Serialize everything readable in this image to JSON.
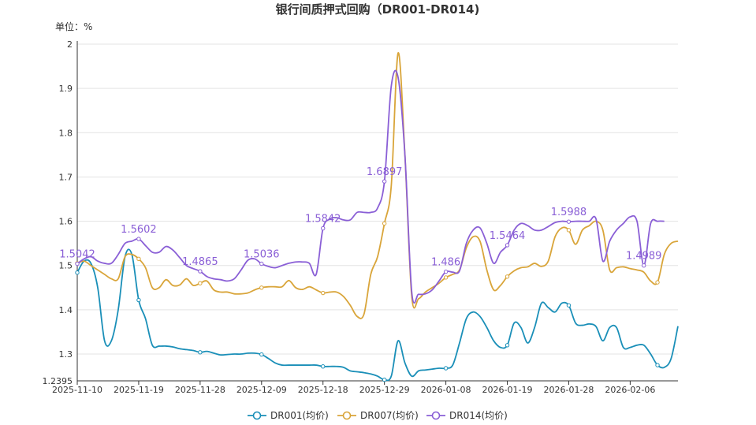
{
  "chart_data": {
    "type": "line",
    "title": "银行间质押式回购（DR001-DR014)",
    "unit_label": "单位：%",
    "ylim": [
      1.2395,
      2.0
    ],
    "yticks": [
      2,
      1.9,
      1.8,
      1.7,
      1.6,
      1.5,
      1.4,
      1.3
    ],
    "ymin_label": "1.2395",
    "x_count": 89,
    "x_ticks": [
      {
        "i": 0,
        "label": "2025-11-10"
      },
      {
        "i": 9,
        "label": "2025-11-19"
      },
      {
        "i": 18,
        "label": "2025-11-28"
      },
      {
        "i": 27,
        "label": "2025-12-09"
      },
      {
        "i": 36,
        "label": "2025-12-18"
      },
      {
        "i": 45,
        "label": "2025-12-29"
      },
      {
        "i": 54,
        "label": "2026-01-08"
      },
      {
        "i": 63,
        "label": "2026-01-19"
      },
      {
        "i": 72,
        "label": "2026-01-28"
      },
      {
        "i": 81,
        "label": "2026-02-06"
      }
    ],
    "series": [
      {
        "name": "DR001(均价)",
        "color": "#1a8fb8",
        "points": [
          [
            0,
            1.484
          ],
          [
            1,
            1.51
          ],
          [
            2,
            1.505
          ],
          [
            3,
            1.45
          ],
          [
            4,
            1.33
          ],
          [
            5,
            1.33
          ],
          [
            6,
            1.4
          ],
          [
            7,
            1.52
          ],
          [
            8,
            1.525
          ],
          [
            9,
            1.422
          ],
          [
            10,
            1.38
          ],
          [
            11,
            1.32
          ],
          [
            12,
            1.318
          ],
          [
            13,
            1.318
          ],
          [
            14,
            1.316
          ],
          [
            15,
            1.312
          ],
          [
            16,
            1.31
          ],
          [
            17,
            1.308
          ],
          [
            18,
            1.304
          ],
          [
            19,
            1.306
          ],
          [
            20,
            1.302
          ],
          [
            21,
            1.298
          ],
          [
            22,
            1.299
          ],
          [
            23,
            1.3
          ],
          [
            24,
            1.3
          ],
          [
            25,
            1.302
          ],
          [
            26,
            1.302
          ],
          [
            27,
            1.299
          ],
          [
            28,
            1.29
          ],
          [
            29,
            1.28
          ],
          [
            30,
            1.275
          ],
          [
            31,
            1.275
          ],
          [
            32,
            1.275
          ],
          [
            33,
            1.275
          ],
          [
            34,
            1.275
          ],
          [
            35,
            1.275
          ],
          [
            36,
            1.272
          ],
          [
            37,
            1.272
          ],
          [
            38,
            1.272
          ],
          [
            39,
            1.27
          ],
          [
            40,
            1.262
          ],
          [
            41,
            1.26
          ],
          [
            42,
            1.258
          ],
          [
            43,
            1.255
          ],
          [
            44,
            1.25
          ],
          [
            45,
            1.242
          ],
          [
            46,
            1.25
          ],
          [
            47,
            1.33
          ],
          [
            48,
            1.28
          ],
          [
            49,
            1.25
          ],
          [
            50,
            1.262
          ],
          [
            51,
            1.264
          ],
          [
            52,
            1.266
          ],
          [
            53,
            1.268
          ],
          [
            54,
            1.268
          ],
          [
            55,
            1.275
          ],
          [
            56,
            1.325
          ],
          [
            57,
            1.38
          ],
          [
            58,
            1.395
          ],
          [
            59,
            1.385
          ],
          [
            60,
            1.36
          ],
          [
            61,
            1.33
          ],
          [
            62,
            1.315
          ],
          [
            63,
            1.32
          ],
          [
            64,
            1.37
          ],
          [
            65,
            1.36
          ],
          [
            66,
            1.325
          ],
          [
            67,
            1.36
          ],
          [
            68,
            1.415
          ],
          [
            69,
            1.405
          ],
          [
            70,
            1.395
          ],
          [
            71,
            1.415
          ],
          [
            72,
            1.41
          ],
          [
            73,
            1.37
          ],
          [
            74,
            1.365
          ],
          [
            75,
            1.368
          ],
          [
            76,
            1.362
          ],
          [
            77,
            1.33
          ],
          [
            78,
            1.36
          ],
          [
            79,
            1.36
          ],
          [
            80,
            1.315
          ],
          [
            81,
            1.315
          ],
          [
            82,
            1.32
          ],
          [
            83,
            1.32
          ],
          [
            84,
            1.3
          ],
          [
            85,
            1.275
          ],
          [
            86,
            1.27
          ],
          [
            87,
            1.29
          ],
          [
            88,
            1.363
          ]
        ],
        "markers": [
          0,
          9,
          18,
          27,
          36,
          45,
          54,
          63,
          72,
          85
        ]
      },
      {
        "name": "DR007(均价)",
        "color": "#d9a53a",
        "points": [
          [
            0,
            1.505
          ],
          [
            1,
            1.51
          ],
          [
            2,
            1.5
          ],
          [
            3,
            1.49
          ],
          [
            4,
            1.48
          ],
          [
            5,
            1.47
          ],
          [
            6,
            1.47
          ],
          [
            7,
            1.52
          ],
          [
            8,
            1.525
          ],
          [
            9,
            1.515
          ],
          [
            10,
            1.495
          ],
          [
            11,
            1.45
          ],
          [
            12,
            1.45
          ],
          [
            13,
            1.468
          ],
          [
            14,
            1.455
          ],
          [
            15,
            1.456
          ],
          [
            16,
            1.47
          ],
          [
            17,
            1.455
          ],
          [
            18,
            1.46
          ],
          [
            19,
            1.465
          ],
          [
            20,
            1.445
          ],
          [
            21,
            1.44
          ],
          [
            22,
            1.44
          ],
          [
            23,
            1.436
          ],
          [
            24,
            1.436
          ],
          [
            25,
            1.438
          ],
          [
            26,
            1.445
          ],
          [
            27,
            1.45
          ],
          [
            28,
            1.452
          ],
          [
            29,
            1.452
          ],
          [
            30,
            1.452
          ],
          [
            31,
            1.466
          ],
          [
            32,
            1.45
          ],
          [
            33,
            1.446
          ],
          [
            34,
            1.452
          ],
          [
            35,
            1.445
          ],
          [
            36,
            1.438
          ],
          [
            37,
            1.44
          ],
          [
            38,
            1.44
          ],
          [
            39,
            1.43
          ],
          [
            40,
            1.41
          ],
          [
            41,
            1.385
          ],
          [
            42,
            1.39
          ],
          [
            43,
            1.48
          ],
          [
            44,
            1.52
          ],
          [
            45,
            1.595
          ],
          [
            46,
            1.68
          ],
          [
            47,
            1.98
          ],
          [
            48,
            1.75
          ],
          [
            49,
            1.43
          ],
          [
            50,
            1.425
          ],
          [
            51,
            1.44
          ],
          [
            52,
            1.45
          ],
          [
            53,
            1.46
          ],
          [
            54,
            1.473
          ],
          [
            55,
            1.48
          ],
          [
            56,
            1.49
          ],
          [
            57,
            1.54
          ],
          [
            58,
            1.565
          ],
          [
            59,
            1.555
          ],
          [
            60,
            1.49
          ],
          [
            61,
            1.445
          ],
          [
            62,
            1.455
          ],
          [
            63,
            1.475
          ],
          [
            64,
            1.488
          ],
          [
            65,
            1.495
          ],
          [
            66,
            1.497
          ],
          [
            67,
            1.505
          ],
          [
            68,
            1.498
          ],
          [
            69,
            1.51
          ],
          [
            70,
            1.565
          ],
          [
            71,
            1.585
          ],
          [
            72,
            1.58
          ],
          [
            73,
            1.548
          ],
          [
            74,
            1.58
          ],
          [
            75,
            1.59
          ],
          [
            76,
            1.6
          ],
          [
            77,
            1.58
          ],
          [
            78,
            1.49
          ],
          [
            79,
            1.495
          ],
          [
            80,
            1.497
          ],
          [
            81,
            1.493
          ],
          [
            82,
            1.49
          ],
          [
            83,
            1.485
          ],
          [
            84,
            1.465
          ],
          [
            85,
            1.462
          ],
          [
            86,
            1.525
          ],
          [
            87,
            1.55
          ],
          [
            88,
            1.555
          ]
        ],
        "markers": [
          0,
          9,
          18,
          27,
          36,
          45,
          54,
          63,
          72,
          85
        ]
      },
      {
        "name": "DR014(均价)",
        "color": "#8a5fd6",
        "points": [
          [
            0,
            1.504
          ],
          [
            1,
            1.515
          ],
          [
            2,
            1.52
          ],
          [
            3,
            1.51
          ],
          [
            4,
            1.505
          ],
          [
            5,
            1.505
          ],
          [
            6,
            1.525
          ],
          [
            7,
            1.55
          ],
          [
            8,
            1.555
          ],
          [
            9,
            1.56
          ],
          [
            10,
            1.545
          ],
          [
            11,
            1.53
          ],
          [
            12,
            1.53
          ],
          [
            13,
            1.543
          ],
          [
            14,
            1.535
          ],
          [
            15,
            1.518
          ],
          [
            16,
            1.5
          ],
          [
            17,
            1.493
          ],
          [
            18,
            1.487
          ],
          [
            19,
            1.475
          ],
          [
            20,
            1.47
          ],
          [
            21,
            1.468
          ],
          [
            22,
            1.465
          ],
          [
            23,
            1.47
          ],
          [
            24,
            1.49
          ],
          [
            25,
            1.512
          ],
          [
            26,
            1.515
          ],
          [
            27,
            1.504
          ],
          [
            28,
            1.498
          ],
          [
            29,
            1.495
          ],
          [
            30,
            1.5
          ],
          [
            31,
            1.505
          ],
          [
            32,
            1.508
          ],
          [
            33,
            1.508
          ],
          [
            34,
            1.505
          ],
          [
            35,
            1.48
          ],
          [
            36,
            1.584
          ],
          [
            37,
            1.605
          ],
          [
            38,
            1.608
          ],
          [
            39,
            1.603
          ],
          [
            40,
            1.603
          ],
          [
            41,
            1.62
          ],
          [
            42,
            1.62
          ],
          [
            43,
            1.62
          ],
          [
            44,
            1.63
          ],
          [
            45,
            1.69
          ],
          [
            46,
            1.905
          ],
          [
            47,
            1.925
          ],
          [
            48,
            1.75
          ],
          [
            49,
            1.44
          ],
          [
            50,
            1.435
          ],
          [
            51,
            1.436
          ],
          [
            52,
            1.445
          ],
          [
            53,
            1.465
          ],
          [
            54,
            1.486
          ],
          [
            55,
            1.485
          ],
          [
            56,
            1.488
          ],
          [
            57,
            1.55
          ],
          [
            58,
            1.58
          ],
          [
            59,
            1.585
          ],
          [
            60,
            1.55
          ],
          [
            61,
            1.505
          ],
          [
            62,
            1.53
          ],
          [
            63,
            1.546
          ],
          [
            64,
            1.58
          ],
          [
            65,
            1.595
          ],
          [
            66,
            1.59
          ],
          [
            67,
            1.58
          ],
          [
            68,
            1.58
          ],
          [
            69,
            1.588
          ],
          [
            70,
            1.597
          ],
          [
            71,
            1.6
          ],
          [
            72,
            1.599
          ],
          [
            73,
            1.6
          ],
          [
            74,
            1.6
          ],
          [
            75,
            1.6
          ],
          [
            76,
            1.605
          ],
          [
            77,
            1.51
          ],
          [
            78,
            1.555
          ],
          [
            79,
            1.58
          ],
          [
            80,
            1.595
          ],
          [
            81,
            1.61
          ],
          [
            82,
            1.6
          ],
          [
            83,
            1.5
          ],
          [
            84,
            1.595
          ],
          [
            85,
            1.6
          ],
          [
            86,
            1.6
          ]
        ],
        "markers": [
          0,
          9,
          18,
          27,
          36,
          45,
          54,
          63,
          72,
          83
        ],
        "point_labels": [
          {
            "i": 0,
            "text": "1.5042"
          },
          {
            "i": 9,
            "text": "1.5602"
          },
          {
            "i": 18,
            "text": "1.4865"
          },
          {
            "i": 27,
            "text": "1.5036"
          },
          {
            "i": 36,
            "text": "1.5842"
          },
          {
            "i": 45,
            "text": "1.6897"
          },
          {
            "i": 54,
            "text": "1.486"
          },
          {
            "i": 63,
            "text": "1.5464"
          },
          {
            "i": 72,
            "text": "1.5988"
          },
          {
            "i": 83,
            "text": "1.4989"
          }
        ]
      }
    ]
  }
}
